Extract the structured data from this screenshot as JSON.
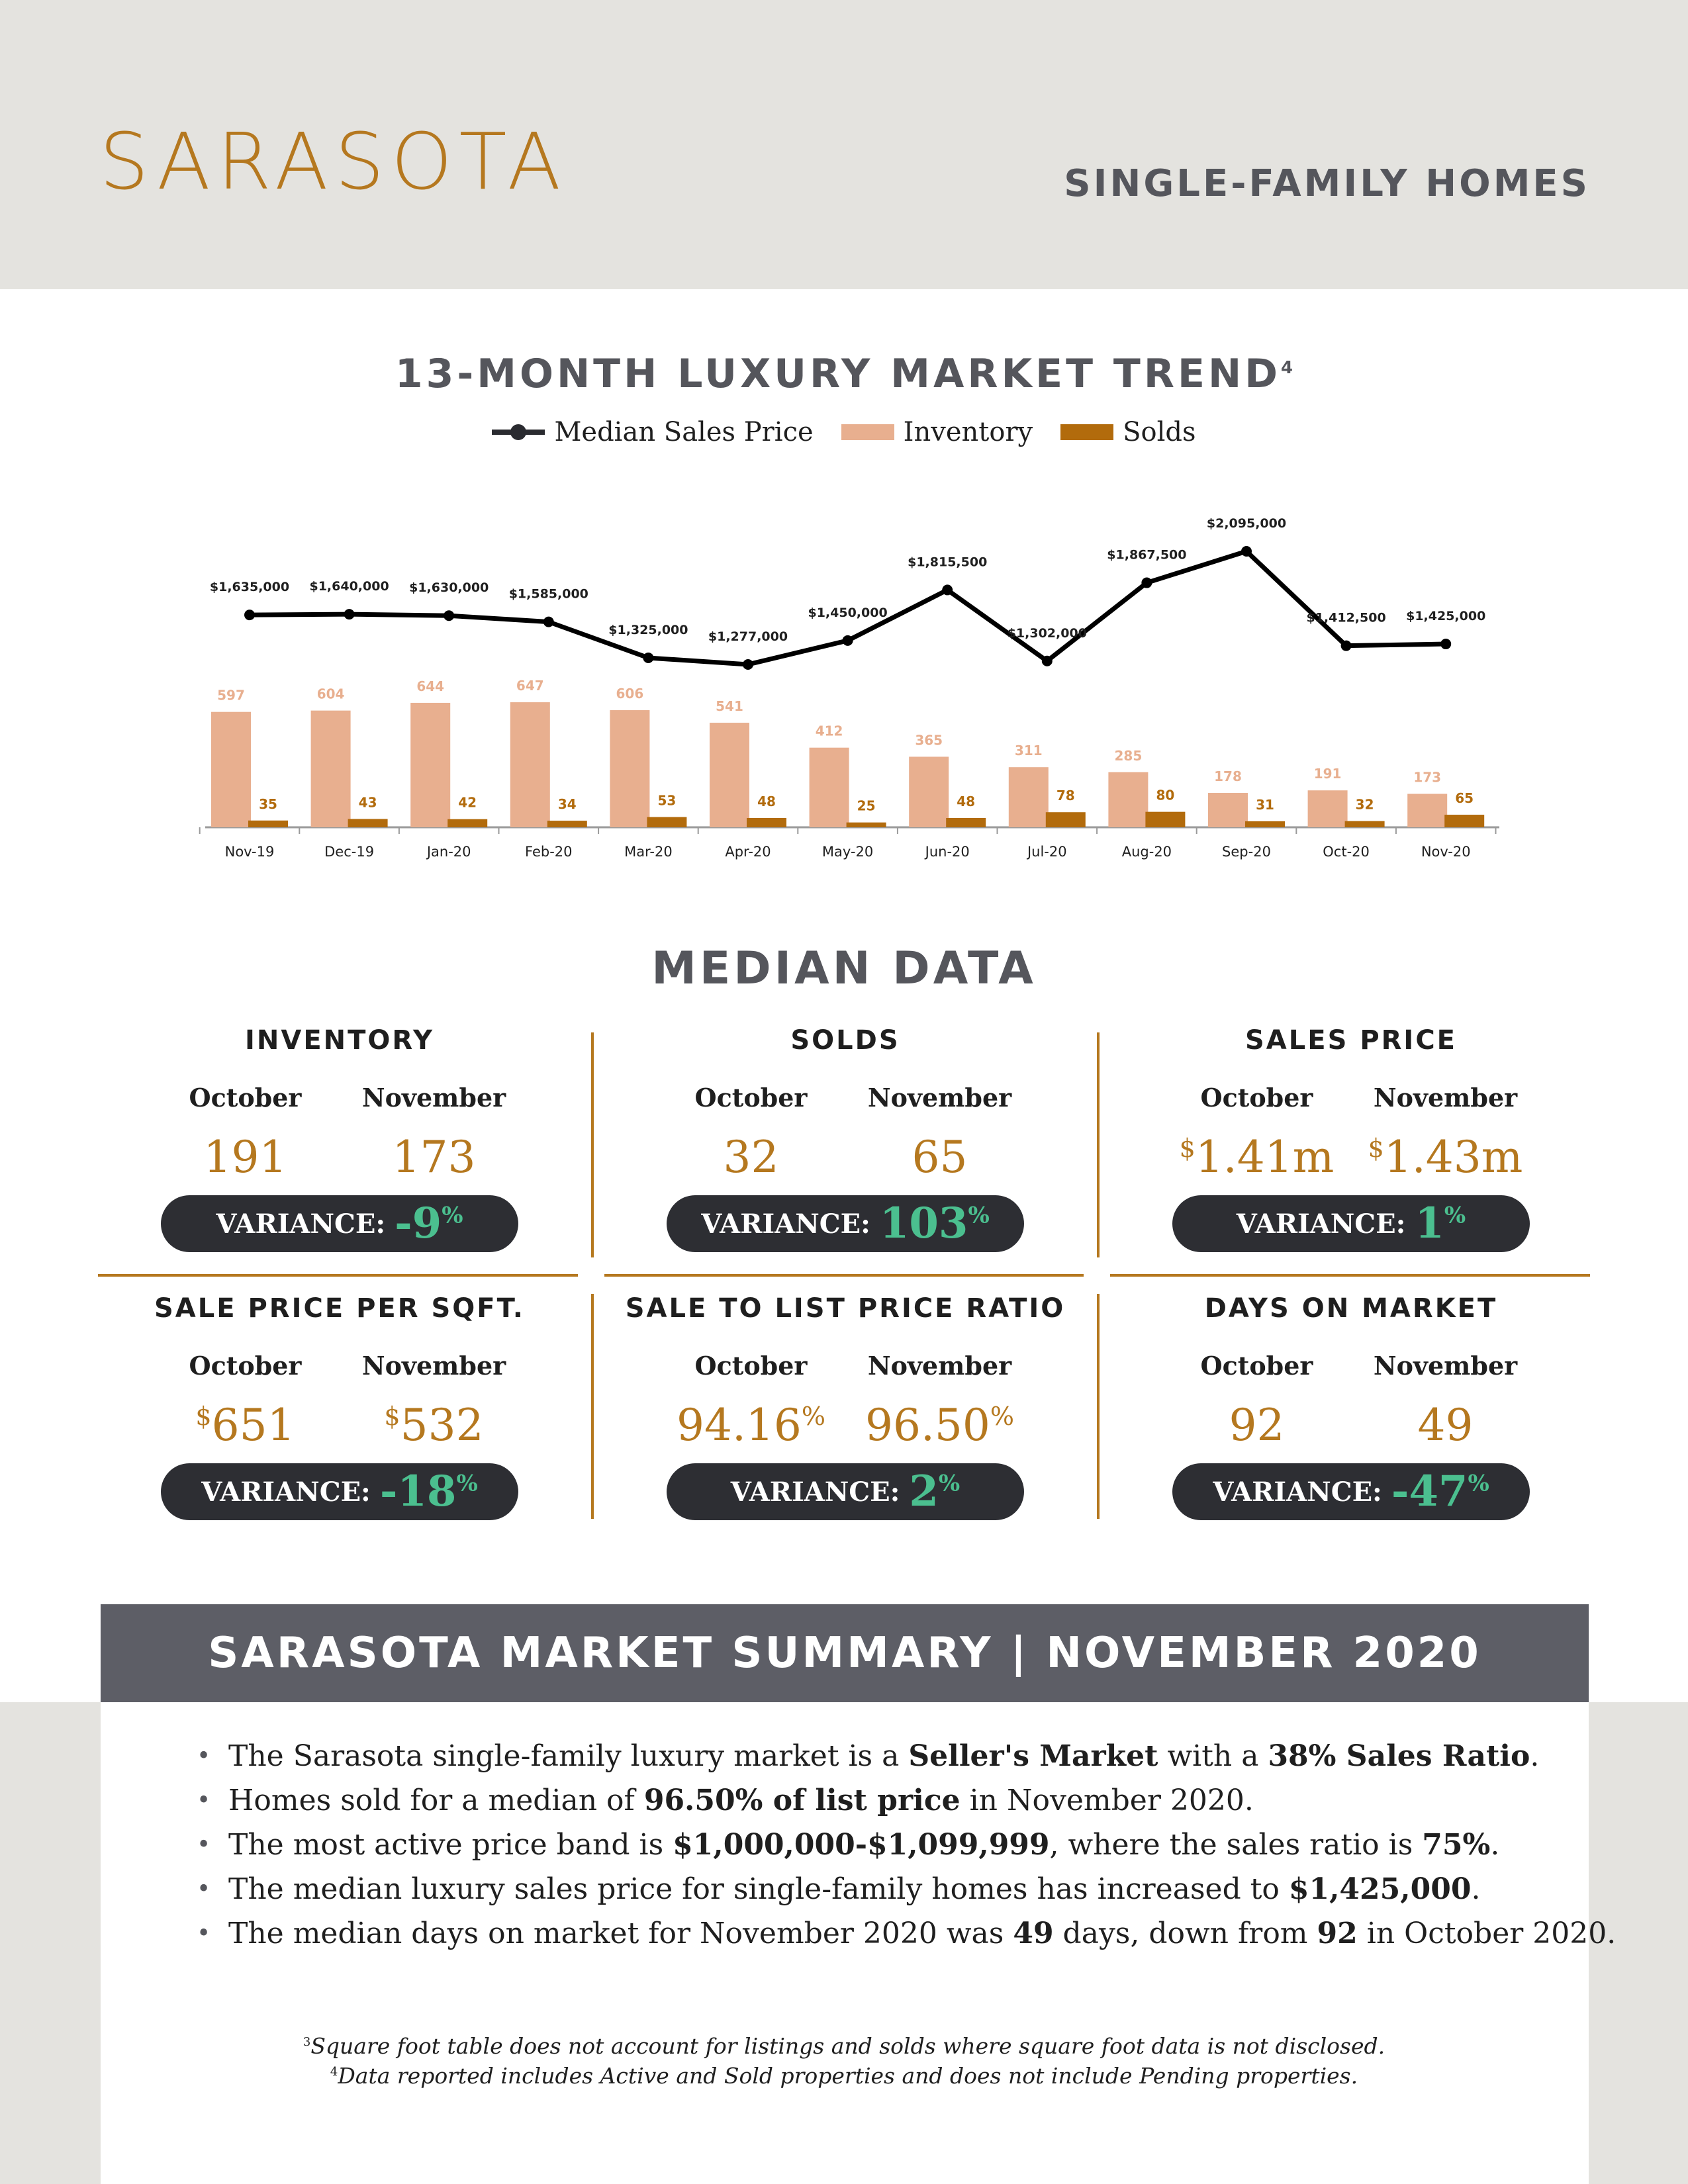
{
  "header": {
    "city": "SARASOTA",
    "segment": "SINGLE-FAMILY HOMES"
  },
  "trend": {
    "title": "13-MONTH LUXURY MARKET TREND",
    "title_note": "4",
    "legend": {
      "price": "Median Sales Price",
      "inventory": "Inventory",
      "solds": "Solds"
    }
  },
  "chart_data": {
    "type": "bar",
    "categories": [
      "Nov-19",
      "Dec-19",
      "Jan-20",
      "Feb-20",
      "Mar-20",
      "Apr-20",
      "May-20",
      "Jun-20",
      "Jul-20",
      "Aug-20",
      "Sep-20",
      "Oct-20",
      "Nov-20"
    ],
    "series": [
      {
        "name": "Median Sales Price",
        "kind": "line",
        "color": "#000000",
        "values": [
          1635000,
          1640000,
          1630000,
          1585000,
          1325000,
          1277000,
          1450000,
          1815500,
          1302000,
          1867500,
          2095000,
          1412500,
          1425000
        ],
        "labels": [
          "$1,635,000",
          "$1,640,000",
          "$1,630,000",
          "$1,585,000",
          "$1,325,000",
          "$1,277,000",
          "$1,450,000",
          "$1,815,500",
          "$1,302,000",
          "$1,867,500",
          "$2,095,000",
          "$1,412,500",
          "$1,425,000"
        ]
      },
      {
        "name": "Inventory",
        "kind": "bar",
        "color": "#e8af8f",
        "values": [
          597,
          604,
          644,
          647,
          606,
          541,
          412,
          365,
          311,
          285,
          178,
          191,
          173
        ]
      },
      {
        "name": "Solds",
        "kind": "bar",
        "color": "#b26b0c",
        "values": [
          35,
          43,
          42,
          34,
          53,
          48,
          25,
          48,
          78,
          80,
          31,
          32,
          65
        ]
      }
    ]
  },
  "median": {
    "title": "MEDIAN DATA",
    "metrics": [
      {
        "label": "INVENTORY",
        "month1": "October",
        "month2": "November",
        "v1": "191",
        "v2": "173",
        "variance_label": "VARIANCE:",
        "variance": "-9",
        "unit": "%"
      },
      {
        "label": "SOLDS",
        "month1": "October",
        "month2": "November",
        "v1": "32",
        "v2": "65",
        "variance_label": "VARIANCE:",
        "variance": "103",
        "unit": "%"
      },
      {
        "label": "SALES PRICE",
        "month1": "October",
        "month2": "November",
        "v1_prefix": "$",
        "v1": "1.41m",
        "v2_prefix": "$",
        "v2": "1.43m",
        "variance_label": "VARIANCE:",
        "variance": "1",
        "unit": "%"
      },
      {
        "label": "SALE PRICE PER SQFT.",
        "month1": "October",
        "month2": "November",
        "v1_prefix": "$",
        "v1": "651",
        "v2_prefix": "$",
        "v2": "532",
        "variance_label": "VARIANCE:",
        "variance": "-18",
        "unit": "%"
      },
      {
        "label": "SALE TO LIST PRICE RATIO",
        "month1": "October",
        "month2": "November",
        "v1": "94.16",
        "v1_suffix": "%",
        "v2": "96.50",
        "v2_suffix": "%",
        "variance_label": "VARIANCE:",
        "variance": "2",
        "unit": "%"
      },
      {
        "label": "DAYS ON MARKET",
        "month1": "October",
        "month2": "November",
        "v1": "92",
        "v2": "49",
        "variance_label": "VARIANCE:",
        "variance": "-47",
        "unit": "%"
      }
    ]
  },
  "summary": {
    "title": "SARASOTA MARKET SUMMARY | NOVEMBER 2020",
    "bullets": [
      [
        {
          "t": "The Sarasota single-family luxury market is a "
        },
        {
          "t": "Seller's Market",
          "b": true
        },
        {
          "t": " with a "
        },
        {
          "t": "38% Sales Ratio",
          "b": true
        },
        {
          "t": "."
        }
      ],
      [
        {
          "t": "Homes sold for a median of "
        },
        {
          "t": "96.50% of list price",
          "b": true
        },
        {
          "t": " in November 2020."
        }
      ],
      [
        {
          "t": "The most active price band is "
        },
        {
          "t": "$1,000,000-$1,099,999",
          "b": true
        },
        {
          "t": ", where the sales ratio is "
        },
        {
          "t": "75%",
          "b": true
        },
        {
          "t": "."
        }
      ],
      [
        {
          "t": "The median luxury sales price for single-family homes has increased to "
        },
        {
          "t": "$1,425,000",
          "b": true
        },
        {
          "t": "."
        }
      ],
      [
        {
          "t": "The median days on market for November 2020 was "
        },
        {
          "t": "49",
          "b": true
        },
        {
          "t": " days, down from "
        },
        {
          "t": "92",
          "b": true
        },
        {
          "t": " in October 2020."
        }
      ]
    ]
  },
  "footnotes": [
    {
      "mark": "3",
      "text": "Square foot table does not account for listings and solds where square foot data is not disclosed."
    },
    {
      "mark": "4",
      "text": "Data reported includes Active and Sold properties and does not include Pending properties."
    }
  ]
}
